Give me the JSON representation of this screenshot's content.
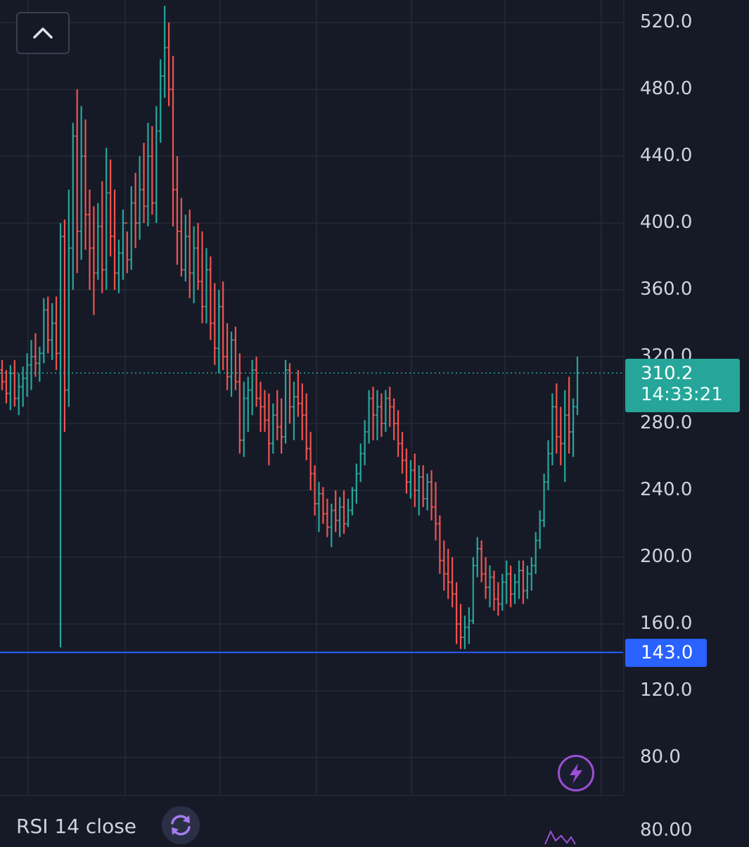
{
  "chart_data": {
    "type": "ohlc",
    "title": "",
    "xlabel": "",
    "ylabel": "",
    "ylim": [
      60,
      530
    ],
    "y_ticks": [
      520.0,
      480.0,
      440.0,
      400.0,
      360.0,
      320.0,
      280.0,
      240.0,
      200.0,
      160.0,
      120.0,
      80.0
    ],
    "y_tick_labels": [
      "520.0",
      "480.0",
      "440.0",
      "400.0",
      "360.0",
      "320.0",
      "280.0",
      "240.0",
      "200.0",
      "160.0",
      "120.0",
      "80.0"
    ],
    "grid": true,
    "up_color": "#26a69a",
    "down_color": "#ef5350",
    "last_price": 310.2,
    "last_price_label": "310.2",
    "countdown_label": "14:33:21",
    "horizontal_level": 143.0,
    "horizontal_level_label": "143.0",
    "level_color": "#2962ff",
    "bars": [
      [
        312,
        318,
        300,
        305
      ],
      [
        305,
        312,
        292,
        298
      ],
      [
        298,
        315,
        288,
        310
      ],
      [
        310,
        318,
        290,
        295
      ],
      [
        295,
        310,
        285,
        302
      ],
      [
        302,
        314,
        290,
        307
      ],
      [
        307,
        322,
        296,
        315
      ],
      [
        315,
        330,
        300,
        320
      ],
      [
        320,
        334,
        308,
        316
      ],
      [
        316,
        326,
        305,
        322
      ],
      [
        322,
        355,
        316,
        348
      ],
      [
        348,
        356,
        322,
        330
      ],
      [
        330,
        352,
        318,
        340
      ],
      [
        340,
        356,
        312,
        322
      ],
      [
        322,
        400,
        146,
        392
      ],
      [
        392,
        402,
        275,
        300
      ],
      [
        300,
        420,
        290,
        385
      ],
      [
        385,
        460,
        360,
        452
      ],
      [
        452,
        480,
        370,
        395
      ],
      [
        395,
        470,
        378,
        440
      ],
      [
        440,
        462,
        384,
        405
      ],
      [
        405,
        420,
        360,
        385
      ],
      [
        385,
        410,
        345,
        370
      ],
      [
        370,
        412,
        366,
        398
      ],
      [
        398,
        425,
        358,
        372
      ],
      [
        372,
        445,
        360,
        418
      ],
      [
        418,
        438,
        380,
        392
      ],
      [
        392,
        420,
        360,
        370
      ],
      [
        370,
        390,
        358,
        382
      ],
      [
        382,
        408,
        366,
        400
      ],
      [
        400,
        395,
        370,
        378
      ],
      [
        378,
        422,
        372,
        412
      ],
      [
        412,
        430,
        385,
        400
      ],
      [
        400,
        440,
        390,
        420
      ],
      [
        420,
        448,
        400,
        410
      ],
      [
        410,
        460,
        398,
        440
      ],
      [
        440,
        458,
        405,
        412
      ],
      [
        412,
        470,
        400,
        455
      ],
      [
        455,
        498,
        448,
        488
      ],
      [
        488,
        530,
        475,
        505
      ],
      [
        505,
        520,
        470,
        480
      ],
      [
        480,
        500,
        398,
        420
      ],
      [
        420,
        440,
        375,
        395
      ],
      [
        395,
        415,
        368,
        372
      ],
      [
        372,
        405,
        365,
        392
      ],
      [
        392,
        408,
        355,
        370
      ],
      [
        370,
        398,
        352,
        385
      ],
      [
        385,
        400,
        360,
        365
      ],
      [
        365,
        395,
        340,
        350
      ],
      [
        350,
        385,
        340,
        372
      ],
      [
        372,
        380,
        330,
        340
      ],
      [
        340,
        364,
        315,
        325
      ],
      [
        325,
        360,
        310,
        350
      ],
      [
        350,
        365,
        312,
        320
      ],
      [
        320,
        340,
        300,
        308
      ],
      [
        308,
        335,
        296,
        330
      ],
      [
        330,
        338,
        300,
        305
      ],
      [
        305,
        322,
        262,
        270
      ],
      [
        270,
        305,
        260,
        295
      ],
      [
        295,
        308,
        275,
        300
      ],
      [
        300,
        318,
        285,
        312
      ],
      [
        312,
        320,
        290,
        295
      ],
      [
        295,
        305,
        275,
        290
      ],
      [
        290,
        300,
        275,
        282
      ],
      [
        282,
        298,
        255,
        268
      ],
      [
        268,
        292,
        262,
        285
      ],
      [
        285,
        300,
        270,
        278
      ],
      [
        278,
        295,
        262,
        272
      ],
      [
        272,
        318,
        268,
        312
      ],
      [
        312,
        316,
        280,
        290
      ],
      [
        290,
        305,
        270,
        296
      ],
      [
        296,
        312,
        284,
        292
      ],
      [
        292,
        304,
        270,
        285
      ],
      [
        285,
        298,
        258,
        265
      ],
      [
        265,
        275,
        240,
        250
      ],
      [
        250,
        255,
        225,
        232
      ],
      [
        232,
        245,
        215,
        238
      ],
      [
        238,
        242,
        220,
        226
      ],
      [
        226,
        235,
        212,
        218
      ],
      [
        218,
        232,
        206,
        228
      ],
      [
        228,
        240,
        215,
        222
      ],
      [
        222,
        236,
        212,
        230
      ],
      [
        230,
        240,
        214,
        220
      ],
      [
        220,
        235,
        218,
        228
      ],
      [
        228,
        242,
        225,
        240
      ],
      [
        240,
        256,
        232,
        250
      ],
      [
        250,
        268,
        245,
        262
      ],
      [
        262,
        282,
        255,
        275
      ],
      [
        275,
        300,
        268,
        295
      ],
      [
        295,
        302,
        270,
        285
      ],
      [
        285,
        300,
        270,
        290
      ],
      [
        290,
        298,
        272,
        280
      ],
      [
        280,
        300,
        275,
        295
      ],
      [
        295,
        302,
        278,
        290
      ],
      [
        290,
        295,
        270,
        280
      ],
      [
        280,
        288,
        260,
        268
      ],
      [
        268,
        275,
        250,
        258
      ],
      [
        258,
        265,
        238,
        245
      ],
      [
        245,
        258,
        235,
        252
      ],
      [
        252,
        262,
        230,
        240
      ],
      [
        240,
        255,
        225,
        248
      ],
      [
        248,
        255,
        230,
        235
      ],
      [
        235,
        250,
        228,
        245
      ],
      [
        245,
        252,
        222,
        230
      ],
      [
        230,
        245,
        210,
        220
      ],
      [
        220,
        225,
        190,
        198
      ],
      [
        198,
        210,
        180,
        190
      ],
      [
        190,
        205,
        175,
        185
      ],
      [
        185,
        200,
        170,
        178
      ],
      [
        178,
        185,
        148,
        160
      ],
      [
        160,
        172,
        145,
        152
      ],
      [
        152,
        165,
        145,
        158
      ],
      [
        158,
        170,
        148,
        162
      ],
      [
        162,
        200,
        160,
        195
      ],
      [
        195,
        212,
        188,
        205
      ],
      [
        205,
        210,
        185,
        190
      ],
      [
        190,
        200,
        175,
        182
      ],
      [
        182,
        195,
        170,
        188
      ],
      [
        188,
        192,
        168,
        175
      ],
      [
        175,
        185,
        165,
        172
      ],
      [
        172,
        190,
        168,
        185
      ],
      [
        185,
        198,
        172,
        190
      ],
      [
        190,
        195,
        170,
        178
      ],
      [
        178,
        190,
        172,
        185
      ],
      [
        185,
        198,
        175,
        192
      ],
      [
        192,
        198,
        172,
        180
      ],
      [
        180,
        195,
        175,
        190
      ],
      [
        190,
        200,
        180,
        195
      ],
      [
        195,
        215,
        190,
        210
      ],
      [
        210,
        228,
        205,
        222
      ],
      [
        222,
        250,
        218,
        245
      ],
      [
        245,
        270,
        240,
        262
      ],
      [
        262,
        298,
        255,
        290
      ],
      [
        290,
        304,
        262,
        272
      ],
      [
        272,
        290,
        255,
        268
      ],
      [
        268,
        300,
        245,
        285
      ],
      [
        285,
        308,
        262,
        275
      ],
      [
        275,
        295,
        260,
        290
      ],
      [
        290,
        320,
        285,
        310.2
      ]
    ]
  },
  "ui": {
    "collapse_icon": "chevron-up-icon",
    "rsi_label": "RSI 14 close",
    "rsi_icon": "refresh-icon",
    "rsi_value_label": "80.00",
    "lightning_icon": "lightning-icon",
    "accent": "#9c4fd6"
  }
}
